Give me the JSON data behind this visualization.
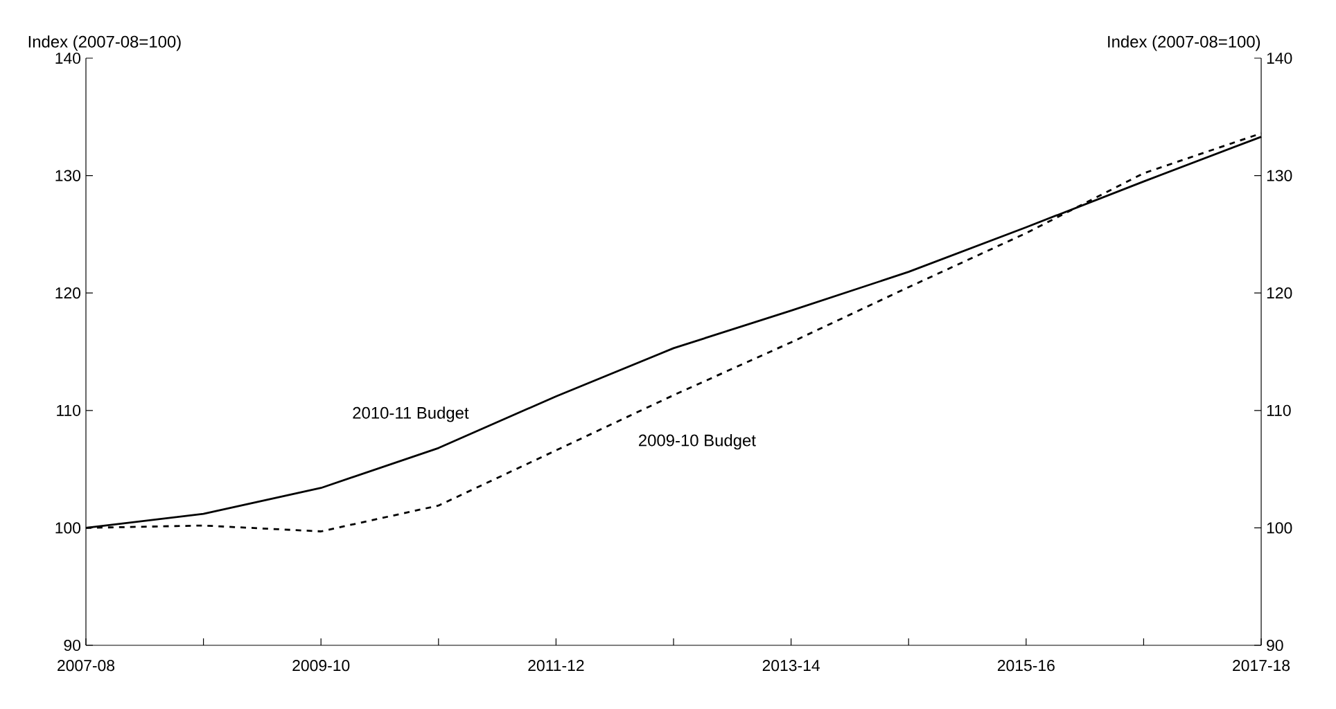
{
  "chart_data": {
    "type": "line",
    "categories": [
      "2007-08",
      null,
      "2009-10",
      null,
      "2011-12",
      null,
      "2013-14",
      null,
      "2015-16",
      null,
      "2017-18"
    ],
    "ylabel": "Index (2007-08=100)",
    "y2label": "Index (2007-08=100)",
    "ylim": [
      90,
      140
    ],
    "yticks": [
      90,
      100,
      110,
      120,
      130,
      140
    ],
    "y2lim": [
      90,
      140
    ],
    "y2ticks": [
      90,
      100,
      110,
      120,
      130,
      140
    ],
    "grid": false,
    "legend": false,
    "marker": "none",
    "series": [
      {
        "name": "2010-11 Budget",
        "color": "#000000",
        "line_style": "solid",
        "values": [
          100,
          101.2,
          103.4,
          106.8,
          111.2,
          115.3,
          118.5,
          121.8,
          125.6,
          129.5,
          133.3
        ]
      },
      {
        "name": "2009-10 Budget",
        "color": "#000000",
        "line_style": "dashed",
        "values": [
          100,
          100.2,
          99.7,
          101.9,
          106.6,
          111.3,
          115.8,
          120.5,
          125.1,
          130.2,
          133.6
        ]
      }
    ]
  }
}
